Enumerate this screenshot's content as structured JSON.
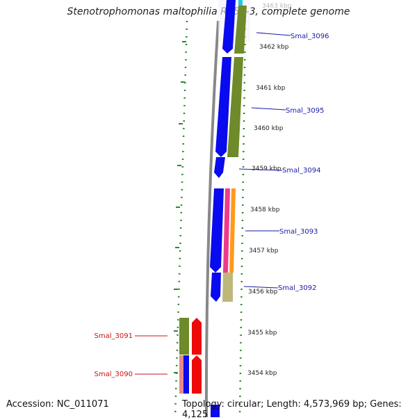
{
  "title": "Stenotrophomonas maltophilia R551-3, complete genome",
  "footer": {
    "accession": "Accession: NC_011071",
    "topology": "Topology: circular; Length: 4,573,969 bp; Genes: 4,125"
  },
  "ticks": [
    {
      "label": "3463 kbp",
      "faded": true
    },
    {
      "label": "3462 kbp"
    },
    {
      "label": "3461 kbp"
    },
    {
      "label": "3460 kbp"
    },
    {
      "label": "3459 kbp"
    },
    {
      "label": "3458 kbp"
    },
    {
      "label": "3457 kbp"
    },
    {
      "label": "3456 kbp"
    },
    {
      "label": "3455 kbp"
    },
    {
      "label": "3454 kbp"
    }
  ],
  "gene_labels": [
    {
      "name": "Smal_3096",
      "strand": "plus"
    },
    {
      "name": "Smal_3095",
      "strand": "plus"
    },
    {
      "name": "Smal_3094",
      "strand": "plus"
    },
    {
      "name": "Smal_3093",
      "strand": "plus"
    },
    {
      "name": "Smal_3092",
      "strand": "plus"
    },
    {
      "name": "Smal_3091",
      "strand": "minus"
    },
    {
      "name": "Smal_3090",
      "strand": "minus"
    }
  ],
  "colors": {
    "plus_label": "#1a1aa8",
    "minus_label": "#cc1111",
    "gene": "#0a0aee",
    "minus_gene": "#ee0a0a",
    "olive": "#6e8a2a",
    "khaki": "#bdb87a",
    "pink": "#ee3a8a",
    "orange": "#ff9a1a",
    "salmon": "#e88a8a",
    "cyan": "#20c8e0",
    "dots": "#2a8a2a",
    "backbone": "#888888"
  }
}
